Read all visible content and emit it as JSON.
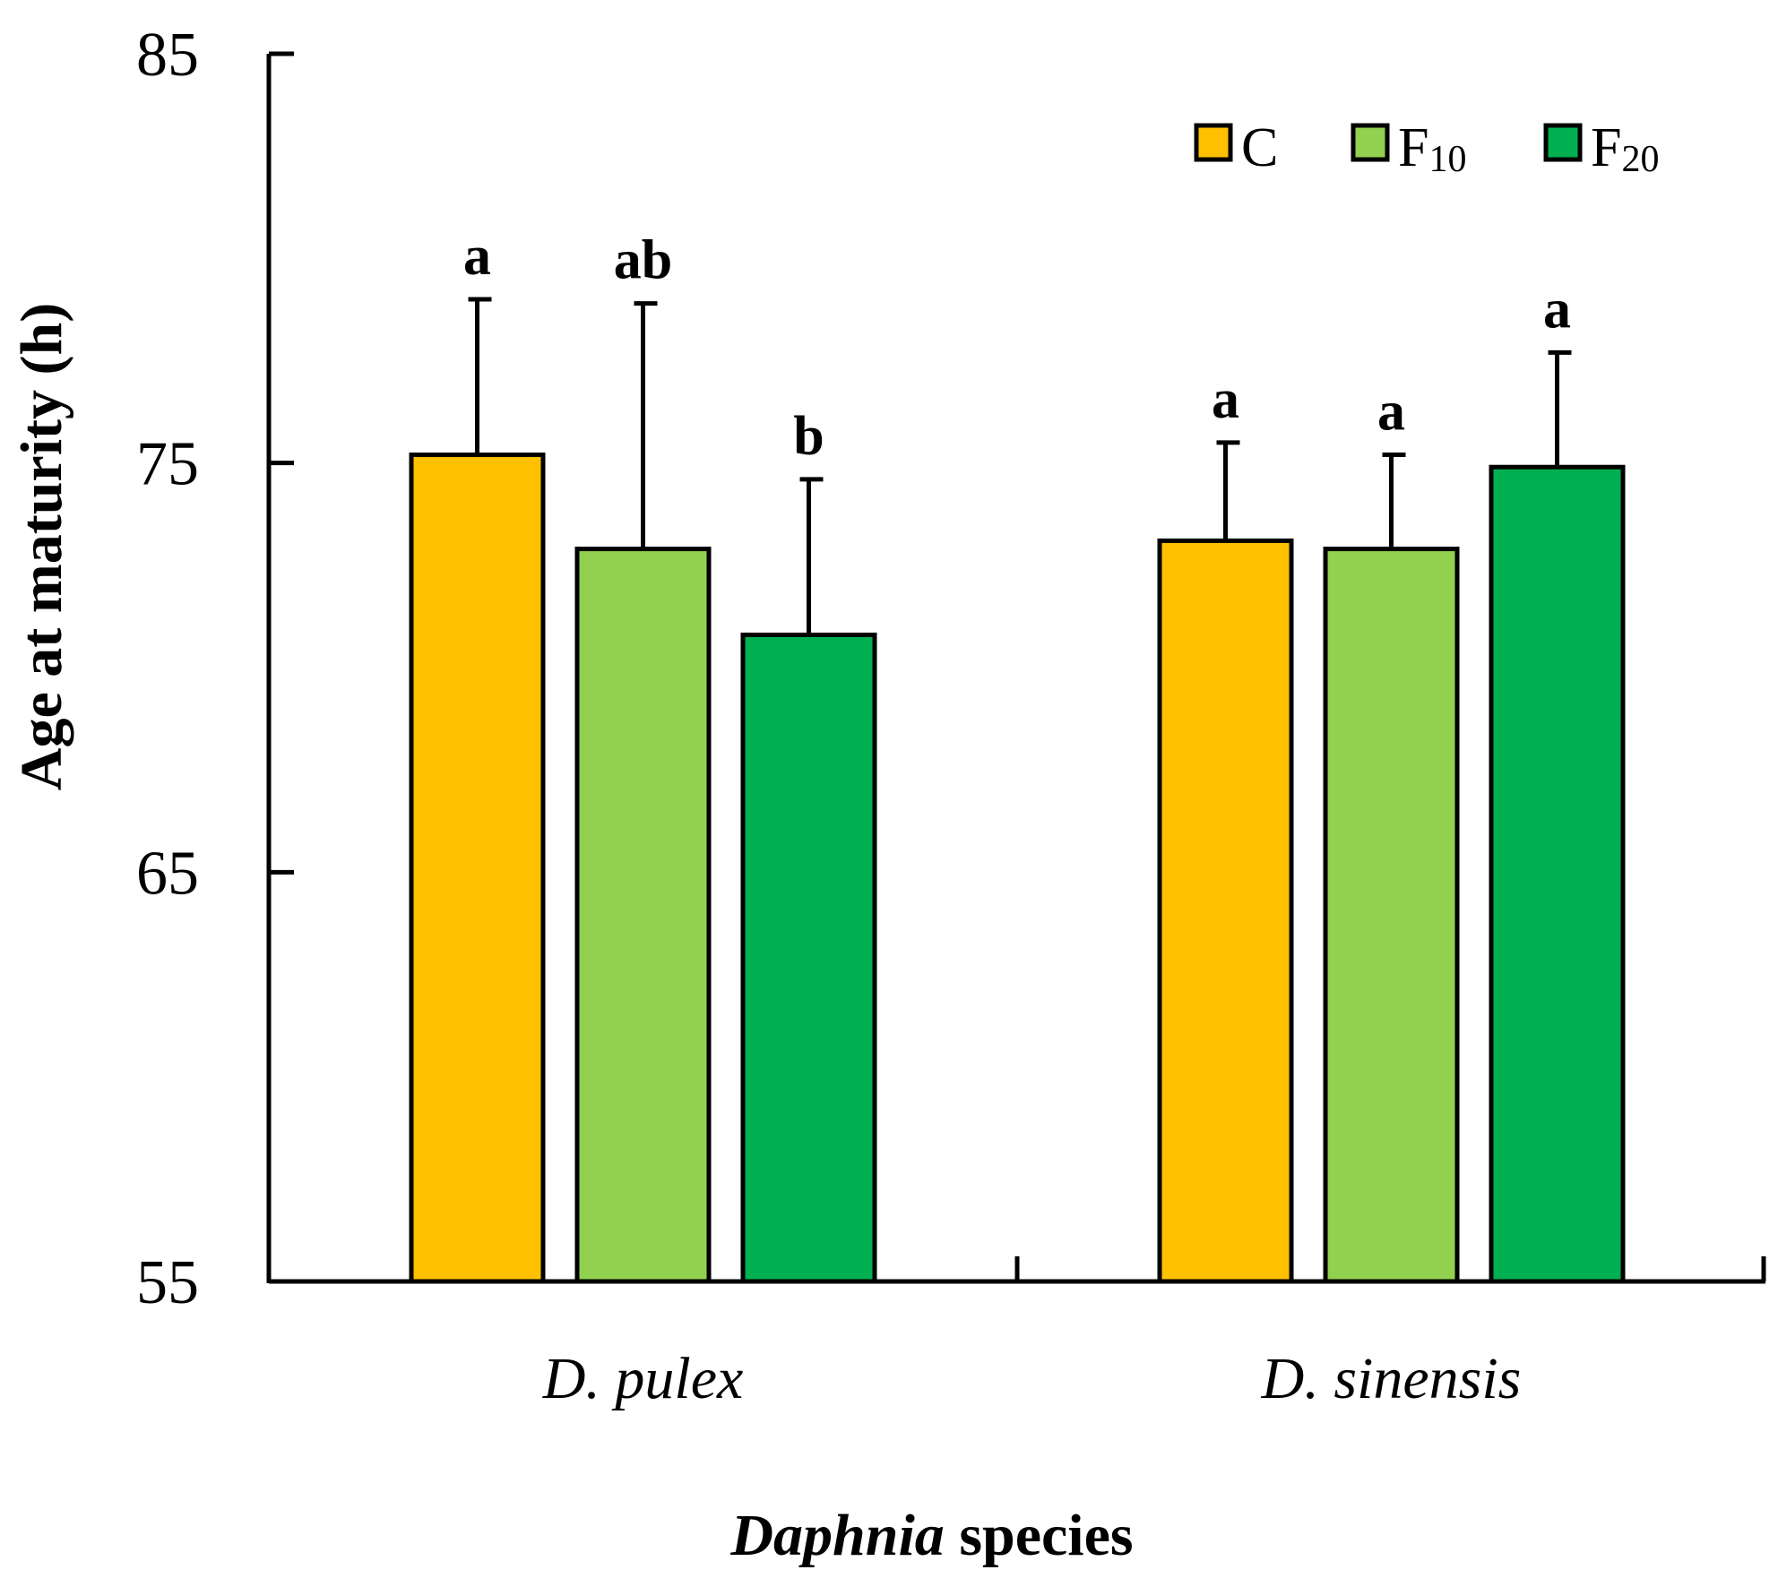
{
  "chart_data": {
    "type": "bar",
    "xlabel_bold": "Daphnia",
    "xlabel_rest": " species",
    "ylabel": "Age at maturity (h)",
    "ylim": [
      55,
      85
    ],
    "yticks": [
      "55",
      "65",
      "75",
      "85"
    ],
    "categories": [
      "D. pulex",
      "D. sinensis"
    ],
    "series": [
      {
        "name": "C",
        "name_main": "C",
        "name_sub": "",
        "color": "#FFC000",
        "values": [
          75.2,
          73.1
        ],
        "errors": [
          3.8,
          2.4
        ],
        "letters": [
          "a",
          "a"
        ]
      },
      {
        "name": "F10",
        "name_main": "F",
        "name_sub": "10",
        "color": "#92D050",
        "values": [
          72.9,
          72.9
        ],
        "errors": [
          6.0,
          2.3
        ],
        "letters": [
          "ab",
          "a"
        ]
      },
      {
        "name": "F20",
        "name_main": "F",
        "name_sub": "20",
        "color": "#00B050",
        "values": [
          70.8,
          74.9
        ],
        "errors": [
          3.8,
          2.8
        ],
        "letters": [
          "b",
          "a"
        ]
      }
    ],
    "legend_position": "top-right",
    "grid": false
  }
}
